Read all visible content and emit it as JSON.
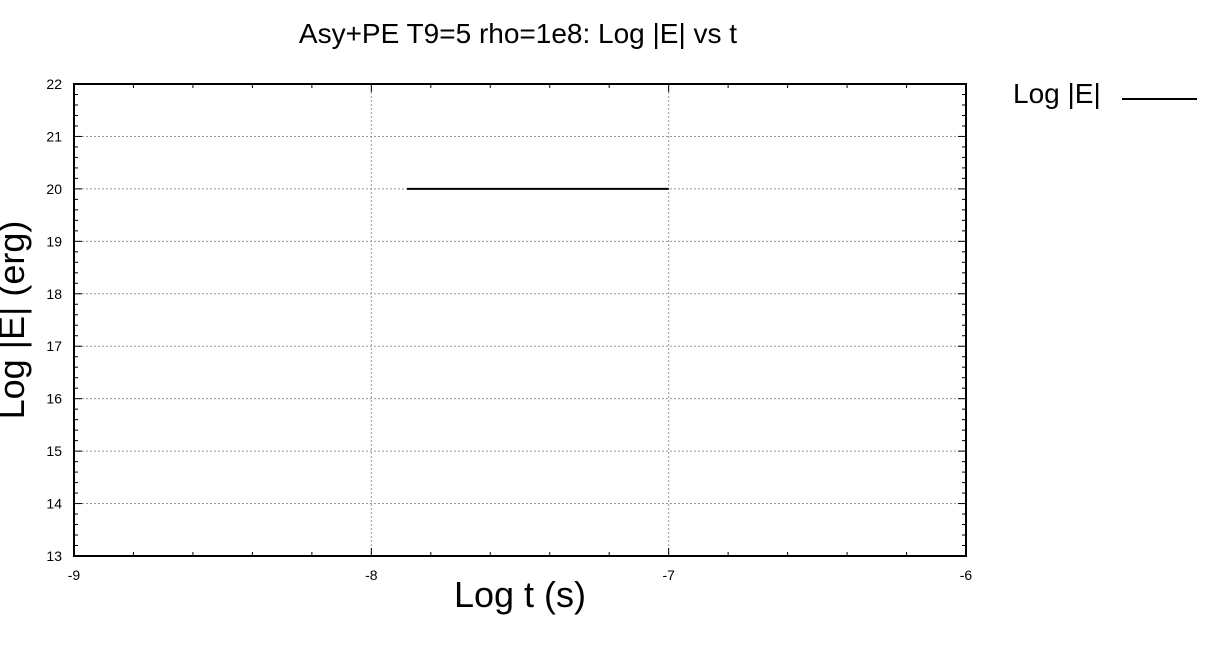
{
  "chart_data": {
    "type": "line",
    "title": "Asy+PE T9=5 rho=1e8: Log |E| vs t",
    "xlabel": "Log t (s)",
    "ylabel": "Log |E| (erg)",
    "xlim": [
      -9,
      -6
    ],
    "ylim": [
      13,
      22
    ],
    "x_ticks": [
      -9,
      -8,
      -7,
      -6
    ],
    "x_tick_labels": [
      "-9",
      "-8",
      "-7",
      "-6"
    ],
    "y_ticks": [
      13,
      14,
      15,
      16,
      17,
      18,
      19,
      20,
      21,
      22
    ],
    "y_tick_labels": [
      "13",
      "14",
      "15",
      "16",
      "17",
      "18",
      "19",
      "20",
      "21",
      "22"
    ],
    "grid": true,
    "legend_position": "outside-top-right",
    "series": [
      {
        "name": "Log |E|",
        "color": "#000000",
        "x": [
          -7.88,
          -7.0
        ],
        "y": [
          20.0,
          20.0
        ]
      }
    ]
  }
}
